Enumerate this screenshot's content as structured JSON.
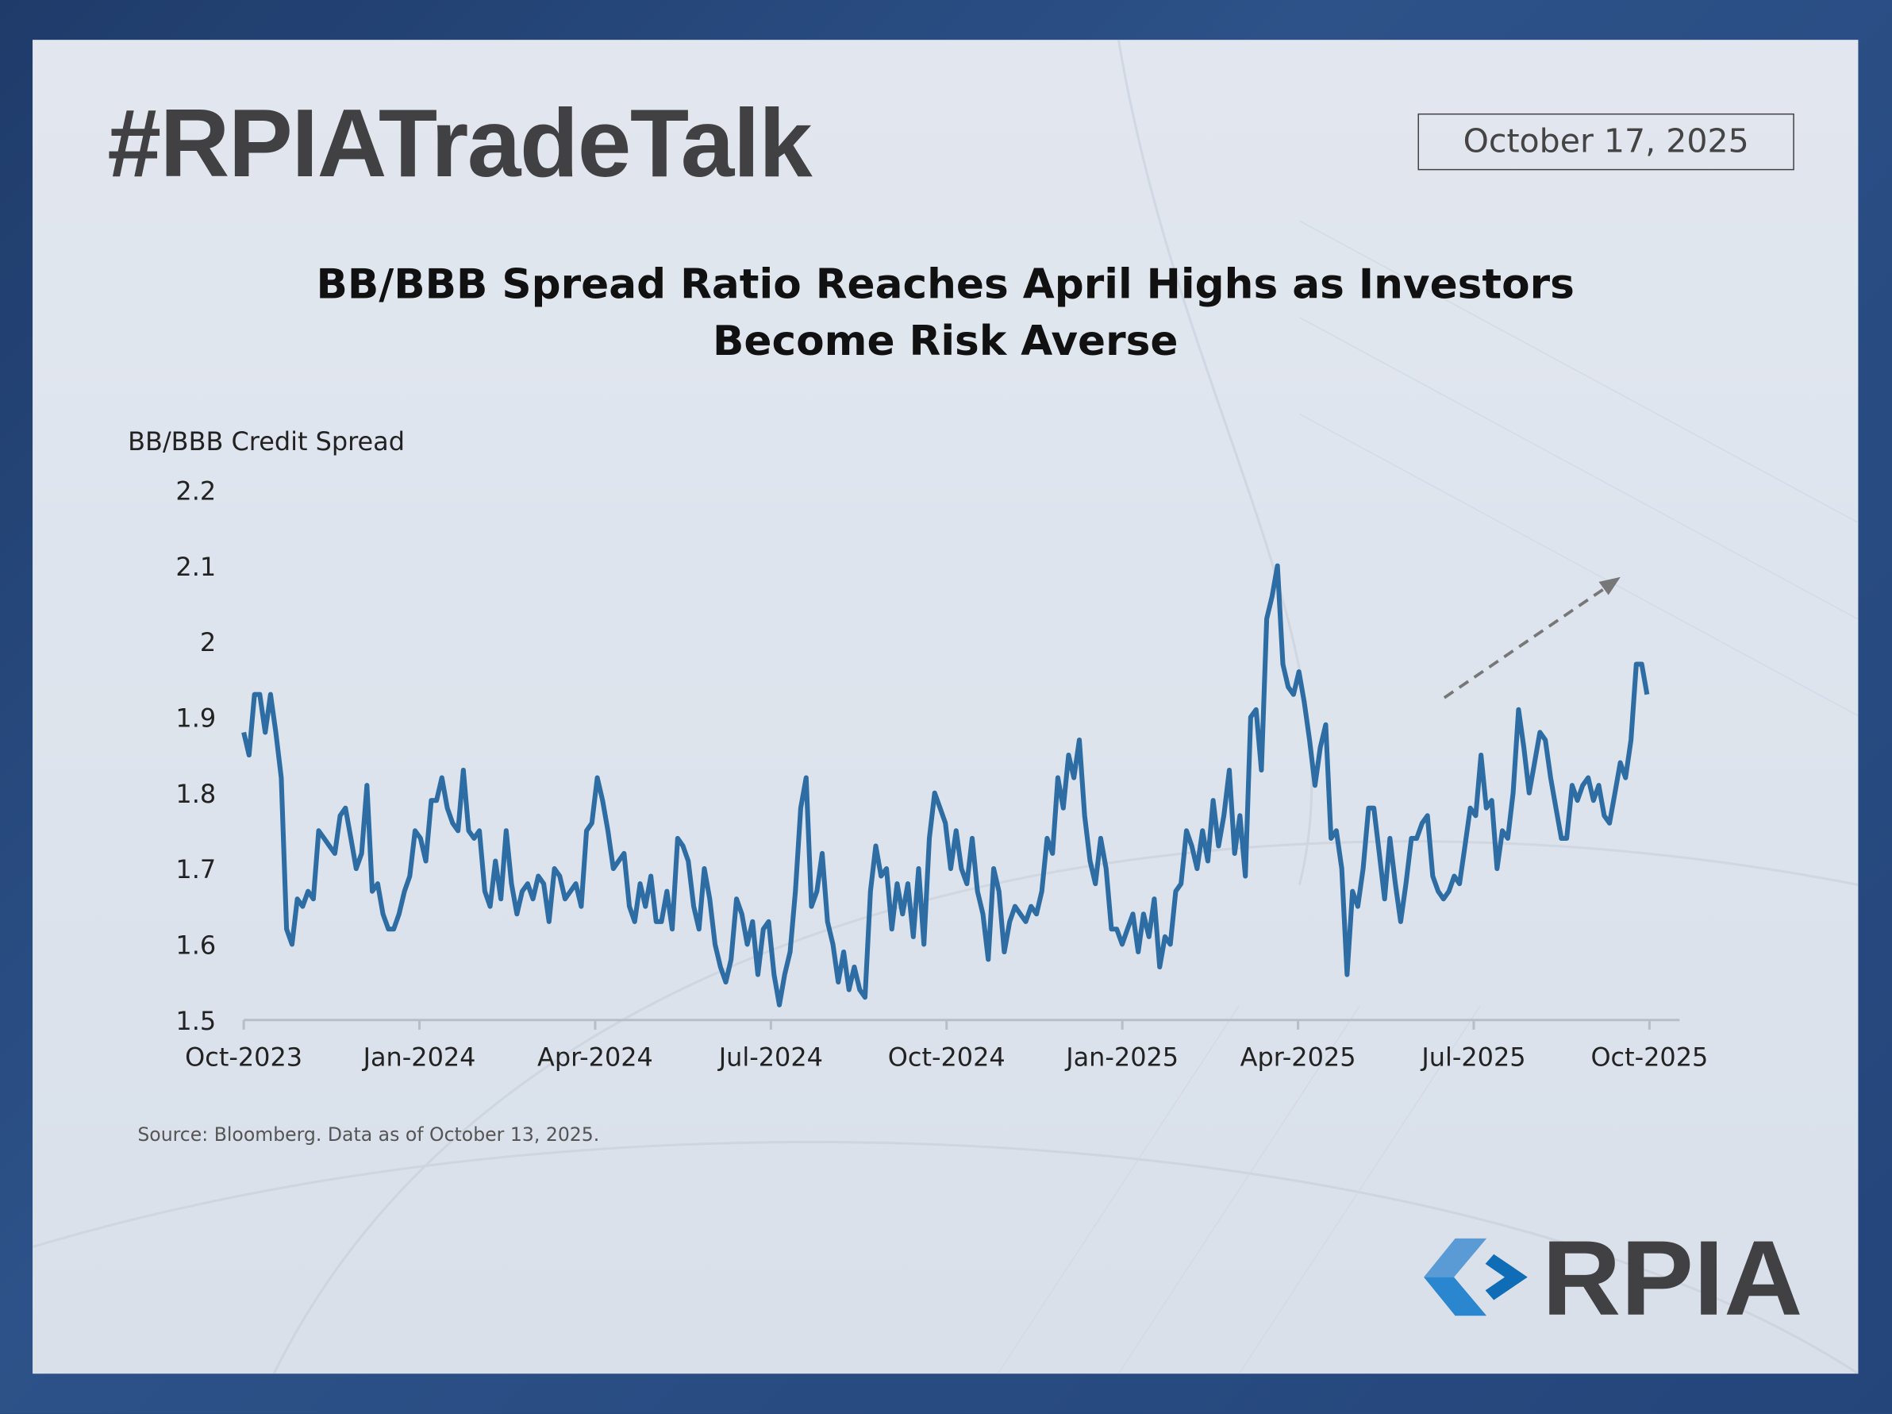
{
  "header": {
    "brand_title": "#RPIATradeTalk",
    "date": "October 17, 2025"
  },
  "chart_data": {
    "type": "line",
    "title_line1": "BB/BBB Spread Ratio Reaches April Highs as Investors",
    "title_line2": "Become Risk Averse",
    "ylabel": "BB/BBB Credit Spread",
    "xlabel": "",
    "ylim": [
      1.5,
      2.2
    ],
    "yticks": [
      "1.5",
      "1.6",
      "1.7",
      "1.8",
      "1.9",
      "2",
      "2.1",
      "2.2"
    ],
    "xticks": [
      "Oct-2023",
      "Jan-2024",
      "Apr-2024",
      "Jul-2024",
      "Oct-2024",
      "Jan-2025",
      "Apr-2025",
      "Jul-2025",
      "Oct-2025"
    ],
    "grid": false,
    "series": [
      {
        "name": "BB/BBB Credit Spread",
        "color": "#2e6da4",
        "values": [
          1.88,
          1.85,
          1.93,
          1.93,
          1.88,
          1.93,
          1.88,
          1.82,
          1.62,
          1.6,
          1.66,
          1.65,
          1.67,
          1.66,
          1.75,
          1.74,
          1.73,
          1.72,
          1.77,
          1.78,
          1.74,
          1.7,
          1.72,
          1.81,
          1.67,
          1.68,
          1.64,
          1.62,
          1.62,
          1.64,
          1.67,
          1.69,
          1.75,
          1.74,
          1.71,
          1.79,
          1.79,
          1.82,
          1.78,
          1.76,
          1.75,
          1.83,
          1.75,
          1.74,
          1.75,
          1.67,
          1.65,
          1.71,
          1.66,
          1.75,
          1.68,
          1.64,
          1.67,
          1.68,
          1.66,
          1.69,
          1.68,
          1.63,
          1.7,
          1.69,
          1.66,
          1.67,
          1.68,
          1.65,
          1.75,
          1.76,
          1.82,
          1.79,
          1.75,
          1.7,
          1.71,
          1.72,
          1.65,
          1.63,
          1.68,
          1.65,
          1.69,
          1.63,
          1.63,
          1.67,
          1.62,
          1.74,
          1.73,
          1.71,
          1.65,
          1.62,
          1.7,
          1.66,
          1.6,
          1.57,
          1.55,
          1.58,
          1.66,
          1.64,
          1.6,
          1.63,
          1.56,
          1.62,
          1.63,
          1.56,
          1.52,
          1.56,
          1.59,
          1.67,
          1.78,
          1.82,
          1.65,
          1.67,
          1.72,
          1.63,
          1.6,
          1.55,
          1.59,
          1.54,
          1.57,
          1.54,
          1.53,
          1.67,
          1.73,
          1.69,
          1.7,
          1.62,
          1.68,
          1.64,
          1.68,
          1.61,
          1.7,
          1.6,
          1.74,
          1.8,
          1.78,
          1.76,
          1.7,
          1.75,
          1.7,
          1.68,
          1.74,
          1.67,
          1.64,
          1.58,
          1.7,
          1.67,
          1.59,
          1.63,
          1.65,
          1.64,
          1.63,
          1.65,
          1.64,
          1.67,
          1.74,
          1.72,
          1.82,
          1.78,
          1.85,
          1.82,
          1.87,
          1.77,
          1.71,
          1.68,
          1.74,
          1.7,
          1.62,
          1.62,
          1.6,
          1.62,
          1.64,
          1.59,
          1.64,
          1.61,
          1.66,
          1.57,
          1.61,
          1.6,
          1.67,
          1.68,
          1.75,
          1.73,
          1.7,
          1.75,
          1.71,
          1.79,
          1.73,
          1.77,
          1.83,
          1.72,
          1.77,
          1.69,
          1.9,
          1.91,
          1.83,
          2.03,
          2.06,
          2.1,
          1.97,
          1.94,
          1.93,
          1.96,
          1.92,
          1.87,
          1.81,
          1.86,
          1.89,
          1.74,
          1.75,
          1.7,
          1.56,
          1.67,
          1.65,
          1.7,
          1.78,
          1.78,
          1.72,
          1.66,
          1.74,
          1.68,
          1.63,
          1.68,
          1.74,
          1.74,
          1.76,
          1.77,
          1.69,
          1.67,
          1.66,
          1.67,
          1.69,
          1.68,
          1.73,
          1.78,
          1.77,
          1.85,
          1.78,
          1.79,
          1.7,
          1.75,
          1.74,
          1.8,
          1.91,
          1.86,
          1.8,
          1.84,
          1.88,
          1.87,
          1.82,
          1.78,
          1.74,
          1.74,
          1.81,
          1.79,
          1.81,
          1.82,
          1.79,
          1.81,
          1.77,
          1.76,
          1.8,
          1.84,
          1.82,
          1.87,
          1.97,
          1.97,
          1.93
        ]
      }
    ],
    "annotations": [
      {
        "type": "dashed-arrow",
        "meaning": "upward trend"
      }
    ]
  },
  "source": "Source: Bloomberg. Data as of October 13, 2025.",
  "logo": {
    "text": "RPIA",
    "colors": [
      "#5a9bd5",
      "#2a86cf",
      "#0f6cb6"
    ]
  }
}
